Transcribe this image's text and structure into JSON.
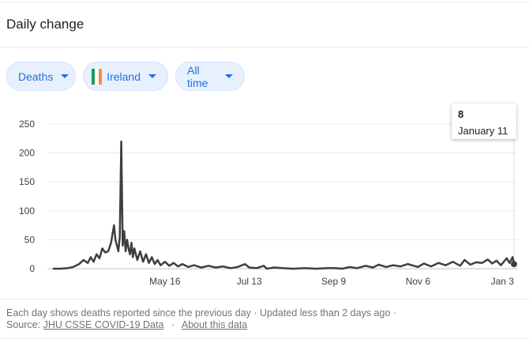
{
  "header": {
    "title": "Daily change"
  },
  "filters": {
    "metric": "Deaths",
    "country": "Ireland",
    "range": "All time",
    "flag_colors": [
      "#169b62",
      "#ffffff",
      "#ff883e"
    ]
  },
  "tooltip": {
    "value": "8",
    "date": "January 11"
  },
  "footer": {
    "note": "Each day shows deaths reported since the previous day · Updated less than 2 days ago ·",
    "source_label": "Source:",
    "source_link": "JHU CSSE COVID-19 Data",
    "separator": "·",
    "about_link": "About this data"
  },
  "chart_data": {
    "type": "line",
    "title": "",
    "xlabel": "",
    "ylabel": "",
    "ylim": [
      0,
      250
    ],
    "yticks": [
      0,
      50,
      100,
      150,
      200,
      250
    ],
    "xtick_labels": [
      "May 16",
      "Jul 13",
      "Sep 9",
      "Nov 6",
      "Jan 3"
    ],
    "line_color": "#3c4043",
    "grid": true,
    "series": [
      {
        "x": [
          "2020-02-29",
          "2020-03-05",
          "2020-03-10",
          "2020-03-14",
          "2020-03-18",
          "2020-03-21",
          "2020-03-24",
          "2020-03-26",
          "2020-03-28",
          "2020-03-30",
          "2020-04-01",
          "2020-04-03",
          "2020-04-05",
          "2020-04-07",
          "2020-04-09",
          "2020-04-10",
          "2020-04-11",
          "2020-04-12",
          "2020-04-13",
          "2020-04-14",
          "2020-04-15",
          "2020-04-16",
          "2020-04-17",
          "2020-04-18",
          "2020-04-19",
          "2020-04-20",
          "2020-04-21",
          "2020-04-22",
          "2020-04-23",
          "2020-04-24",
          "2020-04-25",
          "2020-04-27",
          "2020-04-29",
          "2020-05-01",
          "2020-05-03",
          "2020-05-05",
          "2020-05-07",
          "2020-05-09",
          "2020-05-11",
          "2020-05-13",
          "2020-05-16",
          "2020-05-19",
          "2020-05-22",
          "2020-05-25",
          "2020-05-28",
          "2020-06-01",
          "2020-06-05",
          "2020-06-10",
          "2020-06-15",
          "2020-06-20",
          "2020-06-25",
          "2020-06-30",
          "2020-07-05",
          "2020-07-10",
          "2020-07-13",
          "2020-07-18",
          "2020-07-23",
          "2020-07-25",
          "2020-07-30",
          "2020-08-05",
          "2020-08-12",
          "2020-08-20",
          "2020-08-28",
          "2020-09-05",
          "2020-09-09",
          "2020-09-15",
          "2020-09-20",
          "2020-09-25",
          "2020-10-01",
          "2020-10-06",
          "2020-10-10",
          "2020-10-15",
          "2020-10-20",
          "2020-10-25",
          "2020-10-30",
          "2020-11-03",
          "2020-11-06",
          "2020-11-10",
          "2020-11-15",
          "2020-11-20",
          "2020-11-25",
          "2020-11-30",
          "2020-12-05",
          "2020-12-08",
          "2020-12-12",
          "2020-12-16",
          "2020-12-20",
          "2020-12-24",
          "2020-12-27",
          "2020-12-30",
          "2021-01-02",
          "2021-01-04",
          "2021-01-06",
          "2021-01-08",
          "2021-01-10",
          "2021-01-11"
        ],
        "y": [
          0,
          0,
          1,
          3,
          8,
          15,
          10,
          20,
          12,
          25,
          18,
          35,
          28,
          30,
          45,
          60,
          75,
          50,
          40,
          30,
          55,
          220,
          40,
          65,
          30,
          50,
          35,
          25,
          45,
          20,
          35,
          15,
          30,
          12,
          25,
          10,
          20,
          8,
          15,
          6,
          12,
          5,
          10,
          4,
          8,
          3,
          6,
          2,
          5,
          2,
          4,
          1,
          3,
          8,
          2,
          1,
          5,
          0,
          2,
          1,
          0,
          1,
          0,
          1,
          1,
          0,
          3,
          1,
          5,
          2,
          7,
          3,
          6,
          4,
          8,
          5,
          3,
          9,
          4,
          10,
          6,
          12,
          5,
          15,
          7,
          11,
          10,
          16,
          9,
          14,
          6,
          12,
          18,
          10,
          20,
          8
        ]
      }
    ]
  }
}
